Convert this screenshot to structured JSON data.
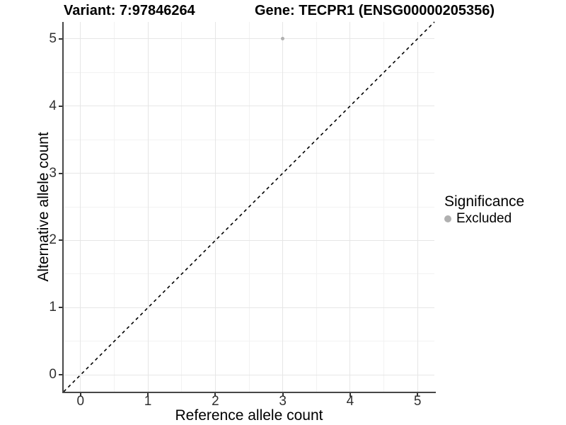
{
  "titles": {
    "variant": "Variant: 7:97846264",
    "gene": "Gene: TECPR1 (ENSG00000205356)"
  },
  "chart_data": {
    "type": "scatter",
    "title": "Variant: 7:97846264  |  Gene: TECPR1 (ENSG00000205356)",
    "xlabel": "Reference allele count",
    "ylabel": "Alternative allele count",
    "xlim": [
      -0.25,
      5.25
    ],
    "ylim": [
      -0.25,
      5.25
    ],
    "x_ticks": [
      0,
      1,
      2,
      3,
      4,
      5
    ],
    "y_ticks": [
      0,
      1,
      2,
      3,
      4,
      5
    ],
    "x_minor_ticks": [
      0.5,
      1.5,
      2.5,
      3.5,
      4.5
    ],
    "y_minor_ticks": [
      0.5,
      1.5,
      2.5,
      3.5,
      4.5
    ],
    "grid": true,
    "legend_position": "right",
    "legend": {
      "title": "Significance",
      "items": [
        {
          "label": "Excluded",
          "color": "#B0B0B0",
          "marker": "circle"
        }
      ]
    },
    "series": [
      {
        "name": "Excluded",
        "color": "#B0B0B0",
        "points": [
          {
            "x": 3,
            "y": 5
          }
        ]
      }
    ],
    "reference_line": {
      "kind": "abline",
      "slope": 1,
      "intercept": 0,
      "style": "dashed",
      "color": "#000000"
    }
  },
  "colors": {
    "background": "#FFFFFF",
    "grid_major": "#E6E6E6",
    "grid_minor": "#F2F2F2",
    "axis_line": "#474747",
    "tick_mark": "#333333",
    "tick_label": "#303030",
    "point": "#B0B0B0",
    "identity_line": "#000000"
  }
}
